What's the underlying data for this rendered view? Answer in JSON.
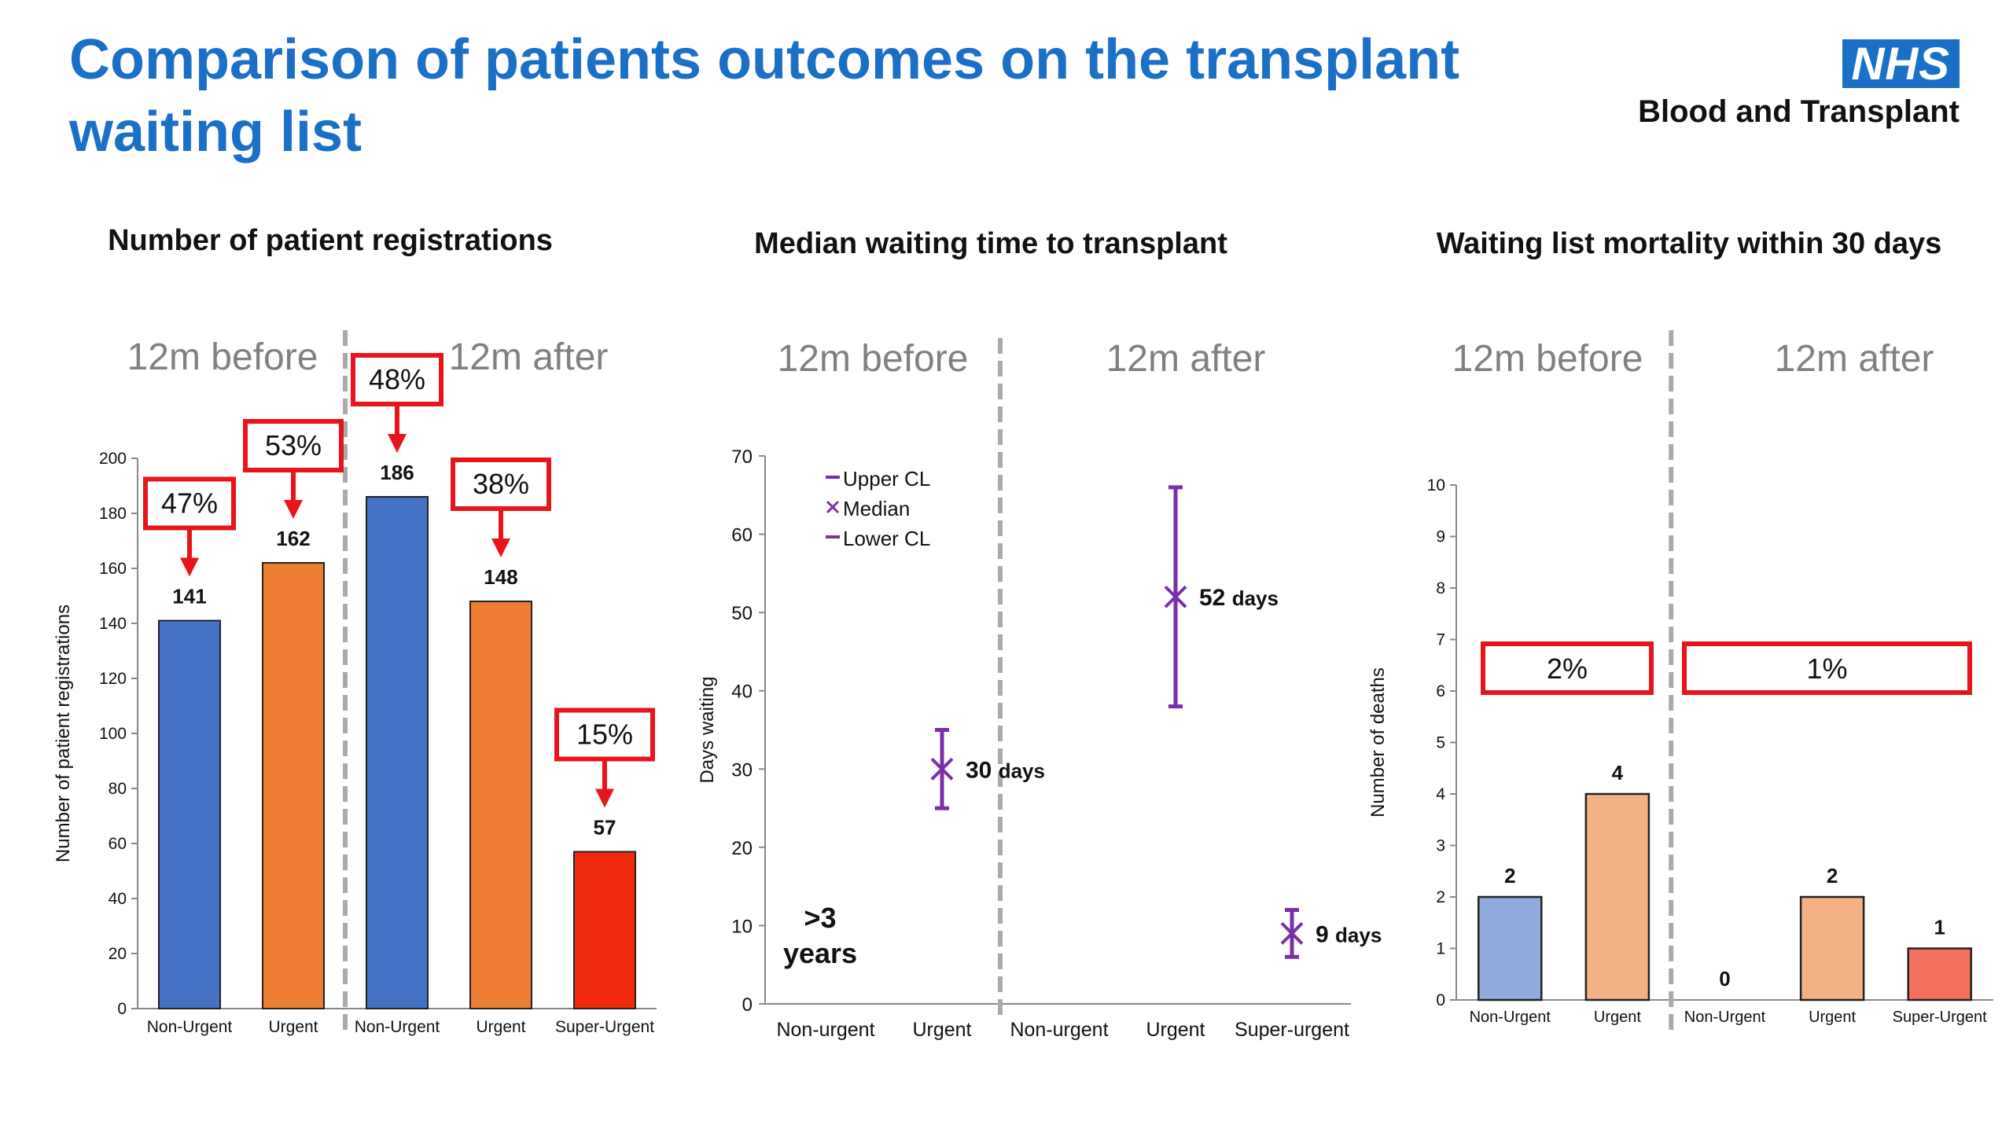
{
  "title": "Comparison of patients outcomes on the transplant waiting list",
  "logo": {
    "brand": "NHS",
    "subtitle": "Blood and Transplant",
    "brand_color": "#1a6fc6"
  },
  "colors": {
    "title": "#1a6fc6",
    "callout_border": "#e8141c",
    "arrow": "#e8141c",
    "median_marker": "#7a2fa8"
  },
  "chart_data": [
    {
      "type": "bar",
      "title": "Number of patient registrations",
      "ylabel": "Number of patient registrations",
      "xlabel": "",
      "ylim": [
        0,
        200
      ],
      "yticks": [
        0,
        20,
        40,
        60,
        80,
        100,
        120,
        140,
        160,
        180,
        200
      ],
      "periods": [
        "12m before",
        "12m after"
      ],
      "categories": [
        "Non-Urgent",
        "Urgent",
        "Non-Urgent",
        "Urgent",
        "Super-Urgent"
      ],
      "values": [
        141,
        162,
        186,
        148,
        57
      ],
      "data_labels": [
        "141",
        "162",
        "186",
        "148",
        "57"
      ],
      "bar_colors": [
        "#4472c4",
        "#ed7d31",
        "#4472c4",
        "#ed7d31",
        "#f0290f"
      ],
      "callouts": [
        "47%",
        "53%",
        "48%",
        "38%",
        "15%"
      ],
      "grid": false
    },
    {
      "type": "scatter",
      "title": "Median waiting time to transplant",
      "ylabel": "Days waiting",
      "xlabel": "",
      "ylim": [
        0,
        70
      ],
      "yticks": [
        0,
        10,
        20,
        30,
        40,
        50,
        60,
        70
      ],
      "periods": [
        "12m before",
        "12m after"
      ],
      "categories": [
        "Non-urgent",
        "Urgent",
        "Non-urgent",
        "Urgent",
        "Super-urgent"
      ],
      "series": [
        {
          "name": "Median",
          "values": [
            null,
            30,
            null,
            52,
            9
          ]
        },
        {
          "name": "Upper CL",
          "values": [
            null,
            35,
            null,
            66,
            12
          ]
        },
        {
          "name": "Lower CL",
          "values": [
            null,
            25,
            null,
            38,
            6
          ]
        }
      ],
      "point_labels": [
        "",
        "30 days",
        "",
        "52 days",
        "9 days"
      ],
      "annotation": ">3 years",
      "legend": [
        "Upper CL",
        "Median",
        "Lower CL"
      ],
      "legend_position": "top-left",
      "grid": false
    },
    {
      "type": "bar",
      "title": "Waiting list mortality within 30 days",
      "ylabel": "Number of deaths",
      "xlabel": "",
      "ylim": [
        0,
        10
      ],
      "yticks": [
        0,
        1,
        2,
        3,
        4,
        5,
        6,
        7,
        8,
        9,
        10
      ],
      "periods": [
        "12m before",
        "12m after"
      ],
      "categories": [
        "Non-Urgent",
        "Urgent",
        "Non-Urgent",
        "Urgent",
        "Super-Urgent"
      ],
      "values": [
        2,
        4,
        0,
        2,
        1
      ],
      "data_labels": [
        "2",
        "4",
        "0",
        "2",
        "1"
      ],
      "bar_colors": [
        "#8faadc",
        "#f4b183",
        "#8faadc",
        "#f4b183",
        "#f4705e"
      ],
      "period_callouts": [
        "2%",
        "1%"
      ],
      "grid": false
    }
  ]
}
